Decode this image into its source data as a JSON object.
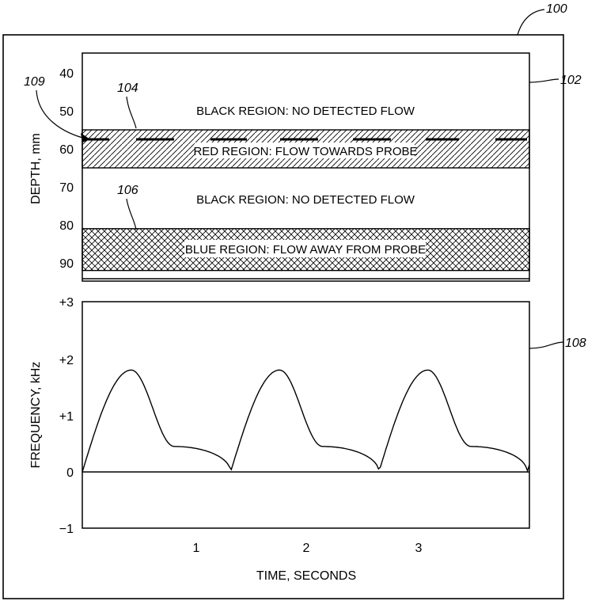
{
  "figure_number": "100",
  "depth_panel": {
    "ref": "102",
    "ylabel": "DEPTH, mm",
    "ticks": [
      "40",
      "50",
      "60",
      "70",
      "80",
      "90"
    ],
    "regions": [
      {
        "label": "BLACK REGION: NO DETECTED FLOW"
      },
      {
        "label": "RED REGION: FLOW TOWARDS PROBE"
      },
      {
        "label": "BLACK REGION: NO DETECTED FLOW"
      },
      {
        "label": "BLUE REGION: FLOW AWAY FROM PROBE"
      }
    ],
    "red_band_mm": [
      55,
      65
    ],
    "blue_band_mm": [
      81,
      92
    ],
    "gate_depth_mm": 57.5,
    "callouts": {
      "red_band": "104",
      "gate": "109",
      "blue_band": "106"
    }
  },
  "frequency_panel": {
    "ref": "108",
    "ylabel": "FREQUENCY, kHz",
    "xlabel": "TIME, SECONDS",
    "yticks": [
      "+3",
      "+2",
      "+1",
      "0",
      "−1"
    ],
    "xticks": [
      "1",
      "2",
      "3"
    ],
    "ylim": [
      -1,
      3
    ],
    "xlim": [
      0,
      4.07
    ],
    "cycle_seconds": 1.35,
    "peak_khz": 1.8,
    "plateau_khz": 0.45
  }
}
